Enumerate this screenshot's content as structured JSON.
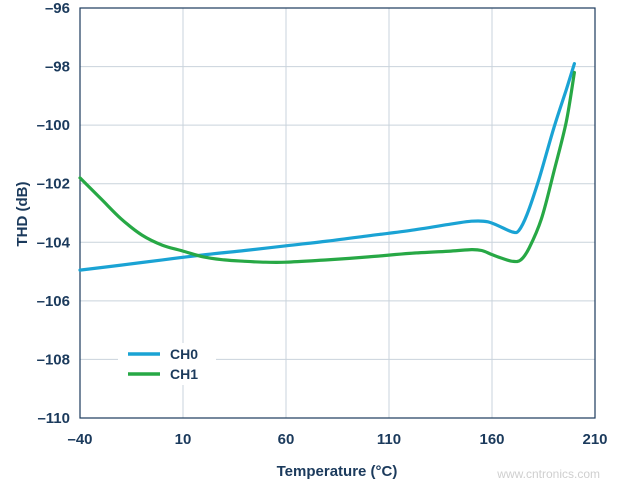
{
  "chart_data": {
    "type": "line",
    "xlabel": "Temperature (°C)",
    "ylabel": "THD (dB)",
    "xlim": [
      -40,
      210
    ],
    "ylim": [
      -110,
      -96
    ],
    "xticks": [
      -40,
      10,
      60,
      110,
      160,
      210
    ],
    "yticks": [
      -96,
      -98,
      -100,
      -102,
      -104,
      -106,
      -108,
      -110
    ],
    "xtick_labels": [
      "–40",
      "10",
      "60",
      "110",
      "160",
      "210"
    ],
    "ytick_labels": [
      "–96",
      "–98",
      "–100",
      "–102",
      "–104",
      "–106",
      "–108",
      "–110"
    ],
    "grid": true,
    "legend_position": "bottom-left",
    "series": [
      {
        "name": "CH0",
        "color": "#1aa3d4",
        "x": [
          -40,
          -20,
          0,
          20,
          40,
          60,
          80,
          100,
          120,
          140,
          150,
          158,
          165,
          170,
          173,
          177,
          183,
          190,
          196,
          200
        ],
        "y": [
          -104.95,
          -104.78,
          -104.6,
          -104.43,
          -104.28,
          -104.12,
          -103.96,
          -103.78,
          -103.6,
          -103.38,
          -103.28,
          -103.3,
          -103.5,
          -103.65,
          -103.6,
          -103.05,
          -101.8,
          -100.1,
          -98.8,
          -97.9
        ]
      },
      {
        "name": "CH1",
        "color": "#27a845",
        "x": [
          -40,
          -30,
          -20,
          -10,
          0,
          10,
          20,
          30,
          40,
          50,
          60,
          80,
          100,
          120,
          140,
          150,
          155,
          160,
          165,
          170,
          174,
          178,
          184,
          190,
          196,
          200
        ],
        "y": [
          -101.8,
          -102.5,
          -103.2,
          -103.75,
          -104.1,
          -104.3,
          -104.5,
          -104.6,
          -104.65,
          -104.68,
          -104.68,
          -104.6,
          -104.5,
          -104.38,
          -104.3,
          -104.25,
          -104.28,
          -104.42,
          -104.55,
          -104.65,
          -104.6,
          -104.2,
          -103.2,
          -101.6,
          -99.9,
          -98.2
        ]
      }
    ]
  },
  "watermark": "www.cntronics.com"
}
